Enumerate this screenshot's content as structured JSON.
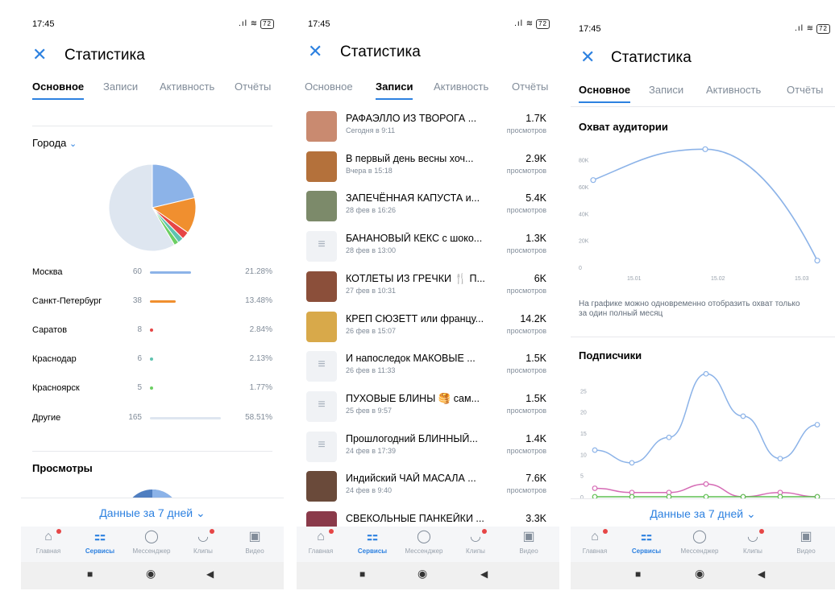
{
  "statusbar": {
    "time": "17:45",
    "battery": "72"
  },
  "header": {
    "title": "Статистика"
  },
  "tabs": [
    "Основное",
    "Записи",
    "Активность",
    "Отчёты"
  ],
  "screen1": {
    "cities_label": "Города",
    "pie_colors": [
      "#8cb3e8",
      "#f08f2f",
      "#e64646",
      "#5fc3b0",
      "#6ccf63",
      "#dee6f0"
    ],
    "cities": [
      {
        "name": "Москва",
        "count": "60",
        "percent": "21.28%",
        "color": "#8cb3e8"
      },
      {
        "name": "Санкт-Петербург",
        "count": "38",
        "percent": "13.48%",
        "color": "#f08f2f"
      },
      {
        "name": "Саратов",
        "count": "8",
        "percent": "2.84%",
        "color": "#e64646"
      },
      {
        "name": "Краснодар",
        "count": "6",
        "percent": "2.13%",
        "color": "#5fc3b0"
      },
      {
        "name": "Красноярск",
        "count": "5",
        "percent": "1.77%",
        "color": "#6ccf63"
      },
      {
        "name": "Другие",
        "count": "165",
        "percent": "58.51%",
        "color": "#dee6f0"
      }
    ],
    "views_label": "Просмотры"
  },
  "screen2": {
    "views_label": "просмотров",
    "posts": [
      {
        "title": "РАФАЭЛЛО ИЗ ТВОРОГА ...",
        "date": "Сегодня в 9:11",
        "views": "1.7K",
        "thumb": "#c98a70"
      },
      {
        "title": "В первый день весны хоч...",
        "date": "Вчера в 15:18",
        "views": "2.9K",
        "thumb": "#b4713b"
      },
      {
        "title": "ЗАПЕЧЁННАЯ КАПУСТА и...",
        "date": "28 фев в 16:26",
        "views": "5.4K",
        "thumb": "#7c8a6a"
      },
      {
        "title": "БАНАНОВЫЙ КЕКС с шоко...",
        "date": "28 фев в 13:00",
        "views": "1.3K",
        "thumb": ""
      },
      {
        "title": "КОТЛЕТЫ ИЗ ГРЕЧКИ 🍴 П...",
        "date": "27 фев в 10:31",
        "views": "6K",
        "thumb": "#8b4f3a"
      },
      {
        "title": "КРЕП СЮЗЕТТ или францу...",
        "date": "26 фев в 15:07",
        "views": "14.2K",
        "thumb": "#d8a94a"
      },
      {
        "title": "И напоследок МАКОВЫЕ ...",
        "date": "26 фев в 11:33",
        "views": "1.5K",
        "thumb": ""
      },
      {
        "title": "ПУХОВЫЕ БЛИНЫ 🥞 сам...",
        "date": "25 фев в 9:57",
        "views": "1.5K",
        "thumb": ""
      },
      {
        "title": "Прошлогодний БЛИННЫЙ...",
        "date": "24 фев в 17:39",
        "views": "1.4K",
        "thumb": ""
      },
      {
        "title": "Индийский ЧАЙ МАСАЛА ...",
        "date": "24 фев в 9:40",
        "views": "7.6K",
        "thumb": "#6a4a3a"
      },
      {
        "title": "СВЕКОЛЬНЫЕ ПАНКЕЙКИ ...",
        "date": "",
        "views": "3.3K",
        "thumb": "#8a3a4a"
      }
    ]
  },
  "screen3": {
    "reach_title": "Охват аудитории",
    "reach_note": "На графике можно одновременно отобразить охват только за один полный месяц",
    "subs_title": "Подписчики"
  },
  "filter_label": "Данные за 7 дней",
  "nav": [
    "Главная",
    "Сервисы",
    "Мессенджер",
    "Клипы",
    "Видео"
  ],
  "chart_data": [
    {
      "type": "pie",
      "title": "Города",
      "categories": [
        "Москва",
        "Санкт-Петербург",
        "Саратов",
        "Краснодар",
        "Красноярск",
        "Другие"
      ],
      "values": [
        60,
        38,
        8,
        6,
        5,
        165
      ]
    },
    {
      "type": "line",
      "title": "Охват аудитории",
      "x_ticks": [
        "15.01",
        "15.02",
        "15.03"
      ],
      "y_ticks": [
        "0",
        "20K",
        "40K",
        "60K",
        "80K"
      ],
      "ylim": [
        0,
        90000
      ],
      "series": [
        {
          "values": [
            65000,
            88000,
            5000
          ],
          "x_index": [
            0,
            0.5,
            1
          ]
        }
      ]
    },
    {
      "type": "line",
      "title": "Подписчики",
      "y_ticks": [
        "0",
        "5",
        "10",
        "15",
        "20",
        "25"
      ],
      "ylim": [
        0,
        30
      ],
      "series": [
        {
          "color": "#8cb3e8",
          "values": [
            11,
            8,
            14,
            29,
            19,
            9,
            17
          ]
        },
        {
          "color": "#d56bb5",
          "values": [
            2,
            1,
            1,
            3,
            0,
            1,
            0
          ]
        },
        {
          "color": "#5fbf52",
          "values": [
            0,
            0,
            0,
            0,
            0,
            0,
            0
          ]
        }
      ]
    }
  ]
}
